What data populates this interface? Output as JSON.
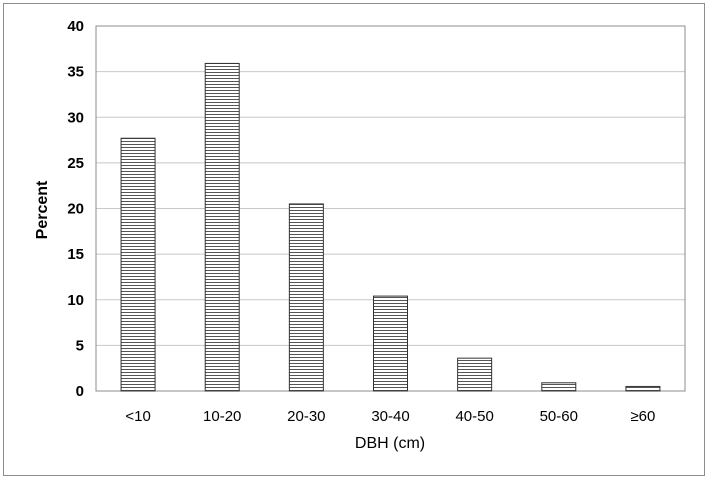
{
  "chart_data": {
    "type": "bar",
    "xlabel": "DBH (cm)",
    "ylabel": "Percent",
    "categories": [
      "<10",
      "10-20",
      "20-30",
      "30-40",
      "40-50",
      "50-60",
      "≥60"
    ],
    "values": [
      27.7,
      35.9,
      20.5,
      10.4,
      3.6,
      0.9,
      0.5
    ],
    "ylim": [
      0,
      40
    ],
    "yticks": [
      0,
      5,
      10,
      15,
      20,
      25,
      30,
      35,
      40
    ],
    "grid": true,
    "legend": "none",
    "colors": {
      "bar_fill": "#ffffff",
      "bar_hatch": "#555555",
      "bar_border": "#333333",
      "grid": "#c8c8c8",
      "frame": "#8c8c8c"
    }
  }
}
